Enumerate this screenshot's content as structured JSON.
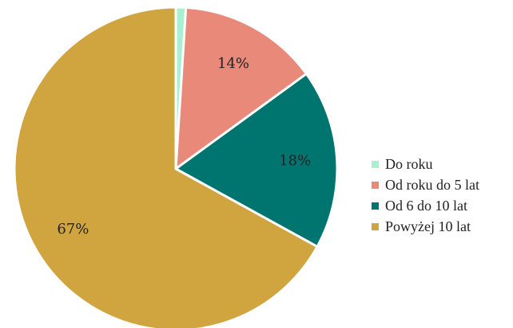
{
  "chart_data": {
    "type": "pie",
    "categories": [
      "Do roku",
      "Od roku do 5 lat",
      "Od 6 do 10 lat",
      "Powyżej 10 lat"
    ],
    "values": [
      1,
      14,
      18,
      67
    ],
    "data_labels": [
      "",
      "14%",
      "18%",
      "67%"
    ],
    "colors": [
      "#a8f0cf",
      "#e8897a",
      "#007570",
      "#d0a53f"
    ],
    "title": "",
    "legend_position": "right"
  }
}
